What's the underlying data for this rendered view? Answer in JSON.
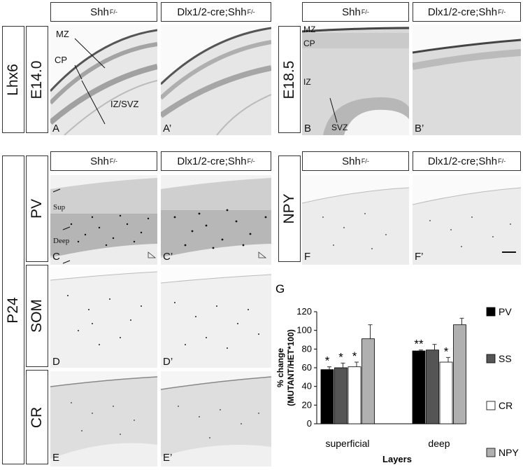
{
  "header": {
    "control_label": "Shh",
    "mutant_label": "Dlx1/2-cre;Shh",
    "superscript": "F/-"
  },
  "rows": {
    "lhx6": "Lhx6",
    "e14": "E14.0",
    "e18": "E18.5",
    "p24": "P24",
    "pv": "PV",
    "som": "SOM",
    "cr": "CR",
    "npy": "NPY"
  },
  "annotations": {
    "mz": "MZ",
    "cp": "CP",
    "iz_svz": "IZ/SVZ",
    "mz_b": "MZ",
    "cp_b": "CP",
    "iz_b": "IZ",
    "svz_b": "SVZ",
    "sup": "Sup",
    "deep": "Deep"
  },
  "panel_labels": {
    "A": "A",
    "A2": "A’",
    "B": "B",
    "B2": "B’",
    "C": "C",
    "C2": "C’",
    "D": "D",
    "D2": "D’",
    "E": "E",
    "E2": "E’",
    "F": "F",
    "F2": "F’",
    "G": "G"
  },
  "chart_data": {
    "type": "bar",
    "ylabel": "% change (MUTANT/HET*100)",
    "xlabel": "Layers",
    "categories": [
      "superficial",
      "deep"
    ],
    "ylim": [
      0,
      120
    ],
    "yticks": [
      0,
      20,
      40,
      60,
      80,
      100,
      120
    ],
    "series": [
      {
        "name": "PV",
        "color": "#000000",
        "values": [
          58,
          78
        ],
        "errors": [
          3,
          1
        ],
        "sig": [
          "*",
          "**"
        ]
      },
      {
        "name": "SS",
        "color": "#555555",
        "values": [
          60,
          79
        ],
        "errors": [
          5,
          6
        ],
        "sig": [
          "*",
          ""
        ]
      },
      {
        "name": "CR",
        "color": "#ffffff",
        "values": [
          61,
          66
        ],
        "errors": [
          5,
          5
        ],
        "sig": [
          "*",
          "*"
        ]
      },
      {
        "name": "NPY",
        "color": "#b0b0b0",
        "values": [
          91,
          106
        ],
        "errors": [
          15,
          7
        ],
        "sig": [
          "",
          ""
        ]
      }
    ]
  }
}
